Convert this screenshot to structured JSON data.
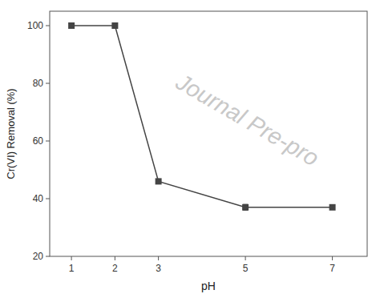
{
  "chart_data": {
    "type": "line",
    "x": [
      1,
      2,
      3,
      5,
      7
    ],
    "series": [
      {
        "values": [
          100,
          100,
          46,
          37,
          37
        ],
        "errors": [
          0,
          0,
          0.5,
          1.0,
          0
        ],
        "color": "#444444",
        "marker": "square"
      }
    ],
    "xlabel": "pH",
    "ylabel": "Cr(VI) Removal (%)",
    "xlim": [
      0.5,
      7.8
    ],
    "ylim": [
      20,
      105
    ],
    "xticks": [
      1,
      2,
      3,
      5,
      7
    ],
    "yticks": [
      20,
      40,
      60,
      80,
      100
    ],
    "grid": false,
    "annotations": [
      "Journal Pre-pro"
    ]
  }
}
